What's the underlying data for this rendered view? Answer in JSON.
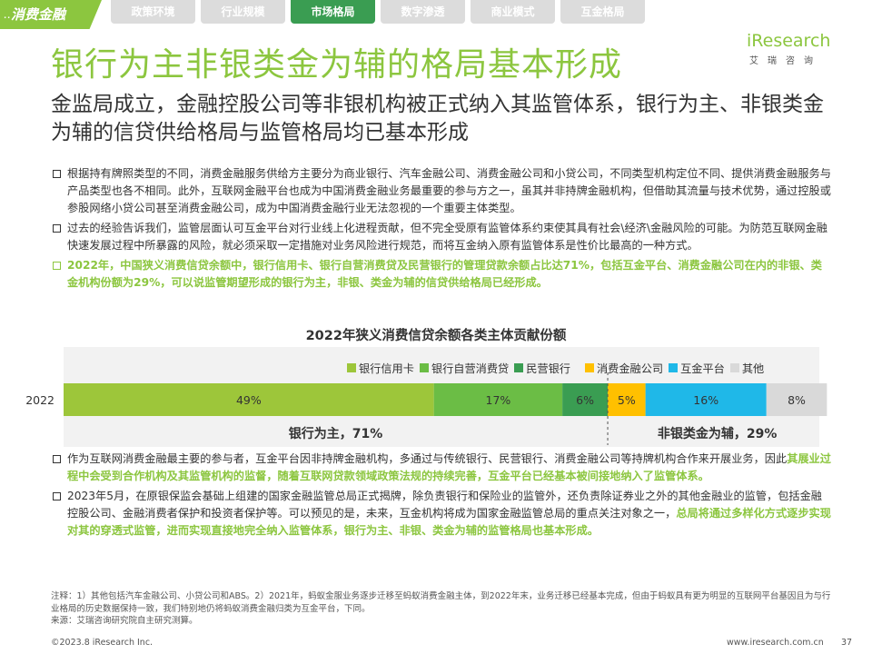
{
  "brand": {
    "label": "消费金融"
  },
  "nav": [
    "政策环境",
    "行业规模",
    "市场格局",
    "数字渗透",
    "商业模式",
    "互金格局"
  ],
  "nav_active_index": 2,
  "logo": {
    "word": "iResearch",
    "sub": "艾瑞咨询"
  },
  "title": "银行为主非银类金为辅的格局基本形成",
  "subtitle": "金监局成立，金融控股公司等非银机构被正式纳入其监管体系，银行为主、非银类金为辅的信贷供给格局与监管格局均已基本形成",
  "bullets": [
    {
      "text": "根据持有牌照类型的不同，消费金融服务供给方主要分为商业银行、汽车金融公司、消费金融公司和小贷公司，不同类型机构定位不同、提供消费金融服务与产品类型也各不相同。此外，互联网金融平台也成为中国消费金融业务最重要的参与方之一，虽其并非持牌金融机构，但借助其流量与技术优势，通过控股或参股网络小贷公司甚至消费金融公司，成为中国消费金融行业无法忽视的一个重要主体类型。"
    },
    {
      "text": "过去的经验告诉我们，监管层面认可互金平台对行业线上化进程贡献，但不完全受原有监管体系约束使其具有社会\\经济\\金融风险的可能。为防范互联网金融快速发展过程中所暴露的风险，就必须采取一定措施对业务风险进行规范，而将互金纳入原有监管体系是性价比最高的一种方式。"
    },
    {
      "text": "2022年，中国狭义消费信贷余额中，银行信用卡、银行自营消费贷及民营银行的管理贷款余额占比达71%，包括互金平台、消费金融公司在内的非银、类金机构份额为29%，可以说监管期望形成的银行为主，非银、类金为辅的信贷供给格局已经形成。"
    }
  ],
  "bottom_bullets": [
    {
      "plain": "作为互联网消费金融最主要的参与者，互金平台因非持牌金融机构，多通过与传统银行、民营银行、消费金融公司等持牌机构合作来开展业务，因此",
      "green": "其展业过程中会受到合作机构及其监管机构的监督，随着互联网贷款领域政策法规的持续完善，互金平台已经基本被间接地纳入了监管体系。"
    },
    {
      "plain": "2023年5月，在原银保监会基础上组建的国家金融监管总局正式揭牌，除负责银行和保险业的监管外，还负责除证券业之外的其他金融业的监管，包括金融控股公司、金融消费者保护和投资者保护等。可以预见的是，未来，互金机构将成为国家金融监管总局的重点关注对象之一，",
      "green": "总局将通过多样化方式逐步实现对其的穿透式监管，进而实现直接地完全纳入监管体系，银行为主、非银、类金为辅的监管格局也基本形成。"
    }
  ],
  "notes": [
    "注释：1）其他包括汽车金融公司、小贷公司和ABS。2）2021年，蚂蚁金服业务逐步迁移至蚂蚁消费金融主体，到2022年末，业务迁移已经基本完成，但由于蚂蚁具有更为明显的互联网平台基因且为与行业格局的历史数据保持一致，我们特别地仍将蚂蚁消费金融归类为互金平台，下同。",
    "来源：艾瑞咨询研究院自主研究测算。"
  ],
  "footer": {
    "copyright": "©2023.8 iResearch Inc.",
    "url": "www.iresearch.com.cn",
    "page": "37"
  },
  "colors": {
    "brand_green": "#8cc63f",
    "active_tab": "#3a9d52",
    "teal": "#22b0b8"
  },
  "chart_data": {
    "type": "bar",
    "stacked": true,
    "orientation": "horizontal",
    "title": "2022年狭义消费信贷余额各类主体贡献份额",
    "categories": [
      "2022"
    ],
    "series": [
      {
        "name": "银行信用卡",
        "values": [
          49
        ],
        "label": "49%",
        "color": "#9dc63a"
      },
      {
        "name": "银行自营消费贷",
        "values": [
          17
        ],
        "label": "17%",
        "color": "#6bbd45"
      },
      {
        "name": "民营银行",
        "values": [
          6
        ],
        "label": "6%",
        "color": "#3a9d52"
      },
      {
        "name": "消费金融公司",
        "values": [
          5
        ],
        "label": "5%",
        "color": "#ffc000"
      },
      {
        "name": "互金平台",
        "values": [
          16
        ],
        "label": "16%",
        "color": "#1fb8e8"
      },
      {
        "name": "其他",
        "values": [
          8
        ],
        "label": "8%",
        "color": "#d9d9d9"
      }
    ],
    "groups": [
      {
        "label": "银行为主，71%",
        "series": [
          "银行信用卡",
          "银行自营消费贷",
          "民营银行"
        ]
      },
      {
        "label": "非银类金为辅，29%",
        "series": [
          "消费金融公司",
          "互金平台",
          "其他"
        ]
      }
    ],
    "xlim": [
      0,
      100
    ],
    "legend": "top"
  }
}
